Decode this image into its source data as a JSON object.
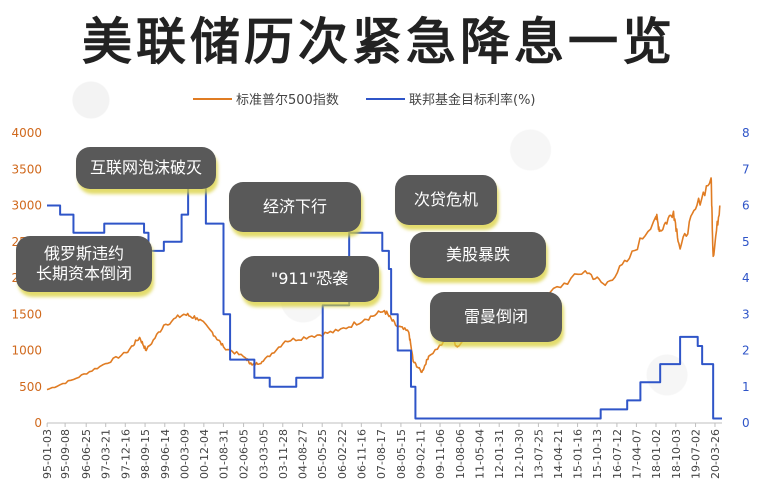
{
  "title": "美联储历次紧急降息一览",
  "chart_data": {
    "type": "line",
    "legend_position": "top-center",
    "series": [
      {
        "name": "标准普尔500指数",
        "axis": "left",
        "color": "#e07c23",
        "x": [
          "1995-01",
          "1996-01",
          "1997-01",
          "1998-01",
          "1998-07",
          "1998-10",
          "1999-06",
          "2000-03",
          "2000-09",
          "2001-04",
          "2001-09",
          "2002-07",
          "2002-10",
          "2003-03",
          "2004-01",
          "2005-01",
          "2006-01",
          "2007-01",
          "2007-10",
          "2008-03",
          "2008-09",
          "2008-11",
          "2009-03",
          "2009-06",
          "2010-04",
          "2010-07",
          "2011-04",
          "2011-10",
          "2012-06",
          "2013-01",
          "2014-01",
          "2015-05",
          "2016-02",
          "2017-01",
          "2018-01",
          "2018-03",
          "2018-09",
          "2018-12",
          "2019-07",
          "2020-02",
          "2020-03",
          "2020-06"
        ],
        "values": [
          460,
          600,
          780,
          970,
          1180,
          1000,
          1350,
          1500,
          1450,
          1250,
          1050,
          900,
          800,
          850,
          1130,
          1200,
          1270,
          1430,
          1550,
          1350,
          1250,
          850,
          700,
          920,
          1200,
          1050,
          1350,
          1150,
          1330,
          1470,
          1800,
          2100,
          1900,
          2270,
          2850,
          2650,
          2920,
          2400,
          2950,
          3380,
          2300,
          3000
        ]
      },
      {
        "name": "联邦基金目标利率(%)",
        "axis": "right",
        "color": "#2f55c8",
        "step": true,
        "x": [
          "1995-01",
          "1995-07",
          "1996-01",
          "1997-03",
          "1998-09",
          "1998-11",
          "1999-06",
          "2000-02",
          "2000-05",
          "2001-01",
          "2001-09",
          "2001-12",
          "2002-11",
          "2003-06",
          "2004-06",
          "2005-06",
          "2006-06",
          "2007-09",
          "2007-12",
          "2008-01",
          "2008-04",
          "2008-10",
          "2008-12",
          "2015-12",
          "2016-12",
          "2017-06",
          "2018-03",
          "2018-12",
          "2019-08",
          "2019-10",
          "2020-03"
        ],
        "values": [
          6.0,
          5.75,
          5.25,
          5.5,
          5.25,
          4.75,
          5.0,
          5.75,
          6.5,
          5.5,
          3.0,
          1.75,
          1.25,
          1.0,
          1.25,
          3.25,
          5.25,
          4.75,
          4.25,
          3.0,
          2.0,
          1.0,
          0.125,
          0.375,
          0.625,
          1.125,
          1.625,
          2.375,
          2.125,
          1.625,
          0.125
        ]
      }
    ],
    "y_left": {
      "min": 0,
      "max": 4000,
      "ticks": [
        0,
        500,
        1000,
        1500,
        2000,
        2500,
        3000,
        3500,
        4000
      ]
    },
    "y_right": {
      "min": 0,
      "max": 8,
      "ticks": [
        0,
        1,
        2,
        3,
        4,
        5,
        6,
        7,
        8
      ]
    },
    "x_range": [
      "1995-01-01",
      "2020-07-01"
    ],
    "x_tick_labels": [
      "1995-01-03",
      "1995-09-08",
      "1996-06-25",
      "1997-03-21",
      "1997-12-16",
      "1998-09-15",
      "1999-06-14",
      "2000-03-09",
      "2000-12-04",
      "2001-08-31",
      "2002-06-05",
      "2003-03-05",
      "2003-11-28",
      "2004-08-27",
      "2005-05-25",
      "2006-02-22",
      "2006-11-16",
      "2007-08-17",
      "2008-05-15",
      "2009-02-11",
      "2009-11-06",
      "2010-08-06",
      "2011-05-04",
      "2012-01-31",
      "2012-10-30",
      "2013-07-25",
      "2014-04-21",
      "2015-01-16",
      "2015-10-13",
      "2016-07-12",
      "2017-04-07",
      "2018-01-02",
      "2018-10-03",
      "2019-07-02",
      "2020-03-26"
    ],
    "x_tick_display": [
      "95-01-03",
      "95-09-08",
      "96-06-25",
      "97-03-21",
      "97-12-16",
      "98-09-15",
      "99-06-14",
      "00-03-09",
      "00-12-04",
      "01-08-31",
      "02-06-05",
      "03-03-05",
      "03-11-28",
      "04-08-27",
      "05-05-25",
      "06-02-22",
      "06-11-16",
      "07-08-17",
      "08-05-15",
      "09-02-11",
      "09-11-06",
      "10-08-06",
      "11-05-04",
      "12-01-31",
      "12-10-30",
      "13-07-25",
      "14-04-21",
      "15-01-16",
      "15-10-13",
      "16-07-12",
      "17-04-07",
      "18-01-02",
      "18-10-03",
      "19-07-02",
      "20-03-26"
    ],
    "grid": false,
    "annotations": [
      {
        "text": "俄罗斯违约\n长期资本倒闭"
      },
      {
        "text": "互联网泡沫破灭"
      },
      {
        "text": "经济下行"
      },
      {
        "text": "\"911\"恐袭"
      },
      {
        "text": "次贷危机"
      },
      {
        "text": "美股暴跌"
      },
      {
        "text": "雷曼倒闭"
      }
    ]
  }
}
